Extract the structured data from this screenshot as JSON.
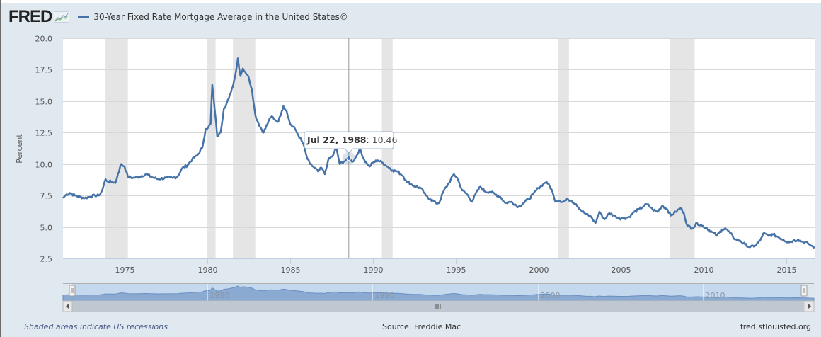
{
  "header": {
    "logo": "FRED",
    "series_title": "30-Year Fixed Rate Mortgage Average in the United States©"
  },
  "footer": {
    "recession_note": "Shaded areas indicate US recessions",
    "source": "Source: Freddie Mac",
    "site": "fred.stlouisfed.org"
  },
  "tooltip": {
    "date": "Jul 22, 1988",
    "separator": ": ",
    "value": "10.46"
  },
  "colors": {
    "series": "#4572a7",
    "recession": "#e5e5e5",
    "grid": "#d8d8d8",
    "background": "#e1e9f0"
  },
  "chart_data": {
    "type": "line",
    "title": "30-Year Fixed Rate Mortgage Average in the United States©",
    "xlabel": "",
    "ylabel": "Percent",
    "xlim": [
      1971.28,
      2016.7
    ],
    "ylim": [
      2.5,
      20.0
    ],
    "yticks": [
      "2.5",
      "5.0",
      "7.5",
      "10.0",
      "12.5",
      "15.0",
      "17.5",
      "20.0"
    ],
    "ytick_values": [
      2.5,
      5.0,
      7.5,
      10.0,
      12.5,
      15.0,
      17.5,
      20.0
    ],
    "xticks": [
      "1975",
      "1980",
      "1985",
      "1990",
      "1995",
      "2000",
      "2005",
      "2010",
      "2015"
    ],
    "xtick_values": [
      1975,
      1980,
      1985,
      1990,
      1995,
      2000,
      2005,
      2010,
      2015
    ],
    "grid": true,
    "legend": "top-left",
    "recessions": [
      [
        1973.85,
        1975.2
      ],
      [
        1980.0,
        1980.5
      ],
      [
        1981.55,
        1982.9
      ],
      [
        1990.55,
        1991.2
      ],
      [
        2001.2,
        2001.85
      ],
      [
        2007.95,
        2009.45
      ]
    ],
    "crosshair_x": 1988.55,
    "series": [
      {
        "name": "30-Year Fixed Rate Mortgage Average in the United States©",
        "x": [
          1971.28,
          1971.5,
          1971.7,
          1972.0,
          1972.3,
          1972.6,
          1972.9,
          1973.2,
          1973.45,
          1973.65,
          1973.85,
          1974.0,
          1974.25,
          1974.45,
          1974.6,
          1974.8,
          1975.0,
          1975.2,
          1975.5,
          1975.9,
          1976.3,
          1976.6,
          1977.0,
          1977.5,
          1977.9,
          1978.2,
          1978.5,
          1978.8,
          1979.1,
          1979.4,
          1979.7,
          1979.9,
          1980.05,
          1980.2,
          1980.3,
          1980.45,
          1980.6,
          1980.8,
          1981.0,
          1981.3,
          1981.6,
          1981.75,
          1981.85,
          1982.0,
          1982.15,
          1982.3,
          1982.5,
          1982.7,
          1982.9,
          1983.1,
          1983.4,
          1983.7,
          1983.9,
          1984.1,
          1984.3,
          1984.5,
          1984.6,
          1984.8,
          1985.0,
          1985.3,
          1985.5,
          1985.8,
          1986.0,
          1986.2,
          1986.4,
          1986.7,
          1986.9,
          1987.1,
          1987.3,
          1987.6,
          1987.8,
          1988.0,
          1988.25,
          1988.55,
          1988.8,
          1989.0,
          1989.2,
          1989.5,
          1989.8,
          1990.0,
          1990.3,
          1990.6,
          1990.9,
          1991.2,
          1991.5,
          1991.8,
          1992.0,
          1992.3,
          1992.6,
          1992.9,
          1993.2,
          1993.5,
          1993.8,
          1994.0,
          1994.3,
          1994.6,
          1994.9,
          1995.1,
          1995.4,
          1995.7,
          1996.0,
          1996.2,
          1996.5,
          1996.8,
          1997.1,
          1997.4,
          1997.7,
          1998.0,
          1998.4,
          1998.8,
          1999.1,
          1999.4,
          1999.7,
          2000.0,
          2000.3,
          2000.5,
          2000.8,
          2001.0,
          2001.3,
          2001.5,
          2001.8,
          2002.0,
          2002.3,
          2002.6,
          2002.9,
          2003.2,
          2003.45,
          2003.7,
          2004.0,
          2004.3,
          2004.6,
          2004.9,
          2005.2,
          2005.5,
          2005.8,
          2006.1,
          2006.4,
          2006.6,
          2006.9,
          2007.2,
          2007.5,
          2007.8,
          2008.0,
          2008.3,
          2008.6,
          2008.8,
          2009.0,
          2009.3,
          2009.6,
          2009.9,
          2010.2,
          2010.5,
          2010.8,
          2011.1,
          2011.3,
          2011.6,
          2011.9,
          2012.2,
          2012.5,
          2012.8,
          2013.1,
          2013.4,
          2013.6,
          2013.9,
          2014.2,
          2014.5,
          2014.8,
          2015.1,
          2015.4,
          2015.7,
          2016.0,
          2016.3,
          2016.5,
          2016.7
        ],
        "values": [
          7.3,
          7.6,
          7.7,
          7.5,
          7.4,
          7.3,
          7.4,
          7.5,
          7.5,
          7.9,
          8.8,
          8.6,
          8.6,
          8.5,
          9.2,
          10.0,
          9.8,
          9.0,
          8.9,
          9.0,
          9.2,
          9.0,
          8.8,
          8.9,
          8.9,
          9.0,
          9.7,
          9.9,
          10.4,
          10.7,
          11.3,
          12.8,
          12.9,
          13.2,
          16.3,
          14.3,
          12.2,
          12.5,
          14.4,
          15.2,
          16.5,
          17.5,
          18.4,
          17.0,
          17.6,
          17.3,
          16.9,
          15.9,
          13.9,
          13.2,
          12.5,
          13.4,
          13.8,
          13.5,
          13.4,
          14.2,
          14.6,
          14.2,
          13.2,
          12.8,
          12.3,
          11.6,
          10.6,
          10.0,
          9.8,
          9.4,
          9.7,
          9.2,
          10.3,
          10.7,
          11.3,
          10.0,
          10.2,
          10.46,
          10.2,
          10.6,
          11.2,
          10.3,
          9.8,
          10.1,
          10.3,
          10.1,
          9.8,
          9.5,
          9.4,
          9.1,
          8.7,
          8.4,
          8.2,
          8.1,
          7.5,
          7.2,
          6.9,
          6.9,
          7.9,
          8.5,
          9.2,
          8.9,
          7.9,
          7.6,
          7.0,
          7.6,
          8.2,
          7.8,
          7.8,
          7.6,
          7.4,
          6.9,
          7.0,
          6.6,
          6.9,
          7.2,
          7.6,
          8.1,
          8.4,
          8.6,
          8.0,
          7.1,
          7.1,
          7.0,
          7.2,
          7.1,
          6.8,
          6.3,
          6.0,
          5.8,
          5.3,
          6.2,
          5.6,
          6.1,
          5.9,
          5.7,
          5.7,
          5.8,
          6.2,
          6.4,
          6.7,
          6.8,
          6.4,
          6.2,
          6.7,
          6.4,
          5.9,
          6.2,
          6.5,
          6.1,
          5.1,
          4.9,
          5.3,
          5.1,
          4.9,
          4.6,
          4.3,
          4.8,
          4.9,
          4.5,
          4.0,
          3.9,
          3.6,
          3.4,
          3.5,
          3.9,
          4.5,
          4.3,
          4.4,
          4.2,
          4.0,
          3.8,
          3.9,
          4.0,
          3.8,
          3.7,
          3.5,
          3.4
        ]
      }
    ],
    "navigator": {
      "xticks": [
        "1980",
        "1990",
        "2000",
        "2010"
      ],
      "xtick_values": [
        1980,
        1990,
        2000,
        2010
      ]
    }
  }
}
